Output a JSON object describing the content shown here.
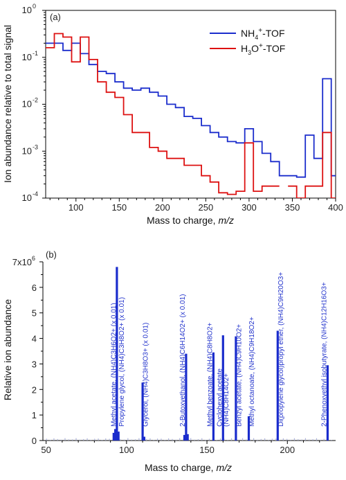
{
  "chart_data": [
    {
      "panel": "(a)",
      "type": "line",
      "xlabel": "Mass to charge, ",
      "xlabel_italic": "m/z",
      "ylabel": "Ion abundance relative to total signal",
      "xlim": [
        65,
        400
      ],
      "ylim": [
        0.0001,
        1
      ],
      "yscale": "log",
      "xticks": [
        100,
        150,
        200,
        250,
        300,
        350,
        400
      ],
      "yticks": [
        {
          "v": 1,
          "base": "10",
          "exp": "0"
        },
        {
          "v": 0.1,
          "base": "10",
          "exp": "-1"
        },
        {
          "v": 0.01,
          "base": "10",
          "exp": "-2"
        },
        {
          "v": 0.001,
          "base": "10",
          "exp": "-3"
        },
        {
          "v": 0.0001,
          "base": "10",
          "exp": "-4"
        }
      ],
      "legend_position": "top-right",
      "series": [
        {
          "name_main": "NH",
          "name_sub": "4",
          "name_sup": "+",
          "name_tail": "-TOF",
          "color": "#1a2ccc",
          "step_width": 10,
          "points": [
            [
              65,
              0.2
            ],
            [
              75,
              0.2
            ],
            [
              85,
              0.14
            ],
            [
              95,
              0.2
            ],
            [
              105,
              0.12
            ],
            [
              115,
              0.07
            ],
            [
              125,
              0.05
            ],
            [
              135,
              0.045
            ],
            [
              145,
              0.03
            ],
            [
              155,
              0.022
            ],
            [
              165,
              0.02
            ],
            [
              175,
              0.022
            ],
            [
              185,
              0.018
            ],
            [
              195,
              0.015
            ],
            [
              205,
              0.01
            ],
            [
              215,
              0.0085
            ],
            [
              225,
              0.0055
            ],
            [
              235,
              0.005
            ],
            [
              245,
              0.0035
            ],
            [
              255,
              0.0025
            ],
            [
              265,
              0.002
            ],
            [
              275,
              0.0016
            ],
            [
              285,
              0.0015
            ],
            [
              295,
              0.003
            ],
            [
              305,
              0.0016
            ],
            [
              315,
              0.0009
            ],
            [
              325,
              0.0006
            ],
            [
              335,
              0.0003
            ],
            [
              345,
              0.0003
            ],
            [
              355,
              0.00028
            ],
            [
              365,
              0.0022
            ],
            [
              375,
              0.0007
            ],
            [
              385,
              0.035
            ],
            [
              395,
              0.0003
            ]
          ]
        },
        {
          "name_main": "H",
          "name_sub": "3",
          "name_mid": "O",
          "name_sup": "+",
          "name_tail": "-TOF",
          "color": "#dd1111",
          "step_width": 10,
          "points": [
            [
              65,
              0.16
            ],
            [
              75,
              0.32
            ],
            [
              85,
              0.27
            ],
            [
              95,
              0.08
            ],
            [
              105,
              0.27
            ],
            [
              115,
              0.09
            ],
            [
              125,
              0.03
            ],
            [
              135,
              0.018
            ],
            [
              145,
              0.014
            ],
            [
              155,
              0.006
            ],
            [
              165,
              0.0025
            ],
            [
              175,
              0.0025
            ],
            [
              185,
              0.0012
            ],
            [
              195,
              0.001
            ],
            [
              205,
              0.0007
            ],
            [
              215,
              0.0007
            ],
            [
              225,
              0.0005
            ],
            [
              235,
              0.0005
            ],
            [
              245,
              0.0003
            ],
            [
              255,
              0.00022
            ],
            [
              265,
              0.00013
            ],
            [
              275,
              0.00012
            ],
            [
              285,
              0.00014
            ],
            [
              295,
              0.0015
            ],
            [
              305,
              0.00014
            ],
            [
              315,
              0.00018
            ],
            [
              325,
              0.00018
            ],
            [
              345,
              0.00018
            ],
            [
              355,
              9e-05
            ],
            [
              365,
              0.00018
            ],
            [
              375,
              0.00018
            ],
            [
              385,
              0.0025
            ],
            [
              395,
              0.0001
            ]
          ]
        }
      ]
    },
    {
      "panel": "(b)",
      "type": "bar",
      "xlabel": "Mass to charge, ",
      "xlabel_italic": "m/z",
      "ylabel": "Relative ion abundance",
      "xlim": [
        48,
        230
      ],
      "ylim": [
        0,
        7000000
      ],
      "xticks": [
        50,
        100,
        150,
        200
      ],
      "yticks": [
        {
          "v": 0,
          "label": "0"
        },
        {
          "v": 1000000,
          "label": "1"
        },
        {
          "v": 2000000,
          "label": "2"
        },
        {
          "v": 3000000,
          "label": "3"
        },
        {
          "v": 4000000,
          "label": "4"
        },
        {
          "v": 5000000,
          "label": "5"
        },
        {
          "v": 6000000,
          "label": "6"
        },
        {
          "v": 7000000,
          "label": "7x10",
          "exp": "6"
        }
      ],
      "bar_color": "#1a2ccc",
      "bars": [
        {
          "mz": 92,
          "value": 300000
        },
        {
          "mz": 93,
          "value": 450000
        },
        {
          "mz": 94,
          "value": 6800000
        },
        {
          "mz": 95,
          "value": 350000
        },
        {
          "mz": 110,
          "value": 2270000
        },
        {
          "mz": 111,
          "value": 150000
        },
        {
          "mz": 136,
          "value": 220000
        },
        {
          "mz": 137,
          "value": 3400000
        },
        {
          "mz": 138,
          "value": 250000
        },
        {
          "mz": 154,
          "value": 3450000
        },
        {
          "mz": 160,
          "value": 4120000
        },
        {
          "mz": 168,
          "value": 4080000
        },
        {
          "mz": 176,
          "value": 950000
        },
        {
          "mz": 194,
          "value": 4300000
        },
        {
          "mz": 225,
          "value": 2950000
        }
      ],
      "annotations": [
        {
          "mz": 92,
          "text": "Methyl acetate, (NH4)C3H6O2+  (x 0.01)"
        },
        {
          "mz": 97,
          "text": "Propylene glycol, (NH4)C3H8O2+ (x 0.01)"
        },
        {
          "mz": 112,
          "text": "Glycerol, (NH4)C3H8O3+ (x 0.01)"
        },
        {
          "mz": 135,
          "text": "2-Butoxyethanol, (NH4)C6H14O2+ (x 0.01)"
        },
        {
          "mz": 152,
          "text": "Methyl benzoate, (NH4)C8H8O2+"
        },
        {
          "mz": 158,
          "text": "Cyclohexyl acetate"
        },
        {
          "mz": 162,
          "text": "(NH4)C8H14O2+"
        },
        {
          "mz": 170,
          "text": "Benzyl acetate, (NH4)C9H10O2+"
        },
        {
          "mz": 178,
          "text": "Methyl octanoate, (NH4)C9H18O2+"
        },
        {
          "mz": 196,
          "text": "Di(propylene glycol)propyl ether, (NH4)C9H20O3+"
        },
        {
          "mz": 223,
          "text": "2-Phenoxyethyl isobutyrate, (NH4)C12H16O3+"
        }
      ]
    }
  ]
}
